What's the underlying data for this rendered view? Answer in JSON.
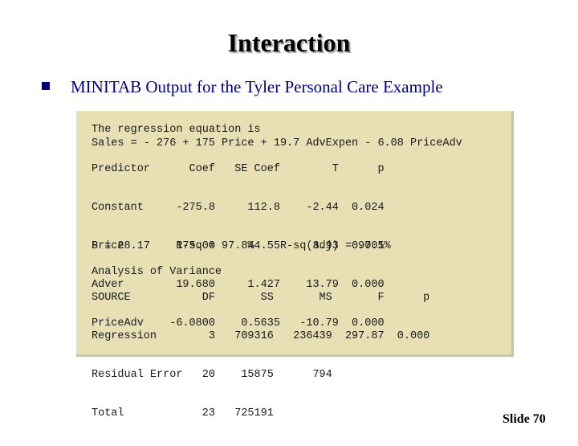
{
  "slide": {
    "title": "Interaction",
    "bullet_text": "MINITAB Output for the Tyler Personal Care Example",
    "slide_label": "Slide",
    "slide_number": "70"
  },
  "output": {
    "equation_heading": "The regression equation is",
    "equation": "Sales = - 276 + 175 Price + 19.7 AdvExpen - 6.08 PriceAdv",
    "predictor_header": "Predictor      Coef   SE Coef        T      p",
    "predictor_rows": [
      "Constant     -275.8     112.8    -2.44  0.024",
      "Price        175.00     44.55     3.93  0.001",
      "Adver        19.680     1.427    13.79  0.000",
      "PriceAdv    -6.0800    0.5635   -10.79  0.000"
    ],
    "fit_line": "S = 28.17    R-sq = 97.8%    R-sq(adj) = 97.5%",
    "anova_title": "Analysis of Variance",
    "anova_header": "SOURCE           DF       SS       MS       F      p",
    "anova_rows": [
      "Regression        3   709316   236439  297.87  0.000",
      "Residual Error   20    15875      794",
      "Total            23   725191"
    ],
    "panel_color": "#e8dfb4"
  }
}
